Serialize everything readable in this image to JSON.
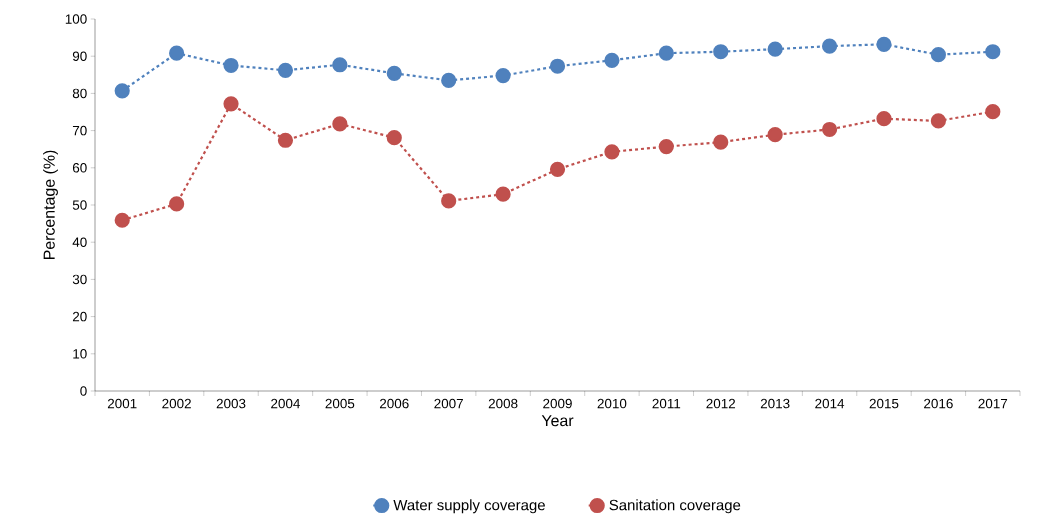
{
  "chart_data": {
    "type": "line",
    "xlabel": "Year",
    "ylabel": "Percentage (%)",
    "categories": [
      "2001",
      "2002",
      "2003",
      "2004",
      "2005",
      "2006",
      "2007",
      "2008",
      "2009",
      "2010",
      "2011",
      "2012",
      "2013",
      "2014",
      "2015",
      "2016",
      "2017"
    ],
    "series": [
      {
        "name": "Water supply coverage",
        "color": "#4f81bd",
        "values": [
          80.7,
          90.8,
          87.5,
          86.2,
          87.7,
          85.4,
          83.5,
          84.8,
          87.3,
          88.9,
          90.8,
          91.2,
          91.9,
          92.7,
          93.2,
          90.4,
          91.2
        ]
      },
      {
        "name": "Sanitation coverage",
        "color": "#c0504d",
        "values": [
          45.9,
          50.3,
          77.2,
          67.4,
          71.8,
          68.1,
          51.1,
          52.9,
          59.6,
          64.3,
          65.7,
          66.9,
          68.9,
          70.3,
          73.2,
          72.6,
          75.1
        ]
      }
    ],
    "ylim": [
      0,
      100
    ],
    "yticks": [
      0,
      10,
      20,
      30,
      40,
      50,
      60,
      70,
      80,
      90,
      100
    ],
    "grid": false,
    "legend": "bottom",
    "marker": "circle",
    "line_style": "dashed"
  }
}
